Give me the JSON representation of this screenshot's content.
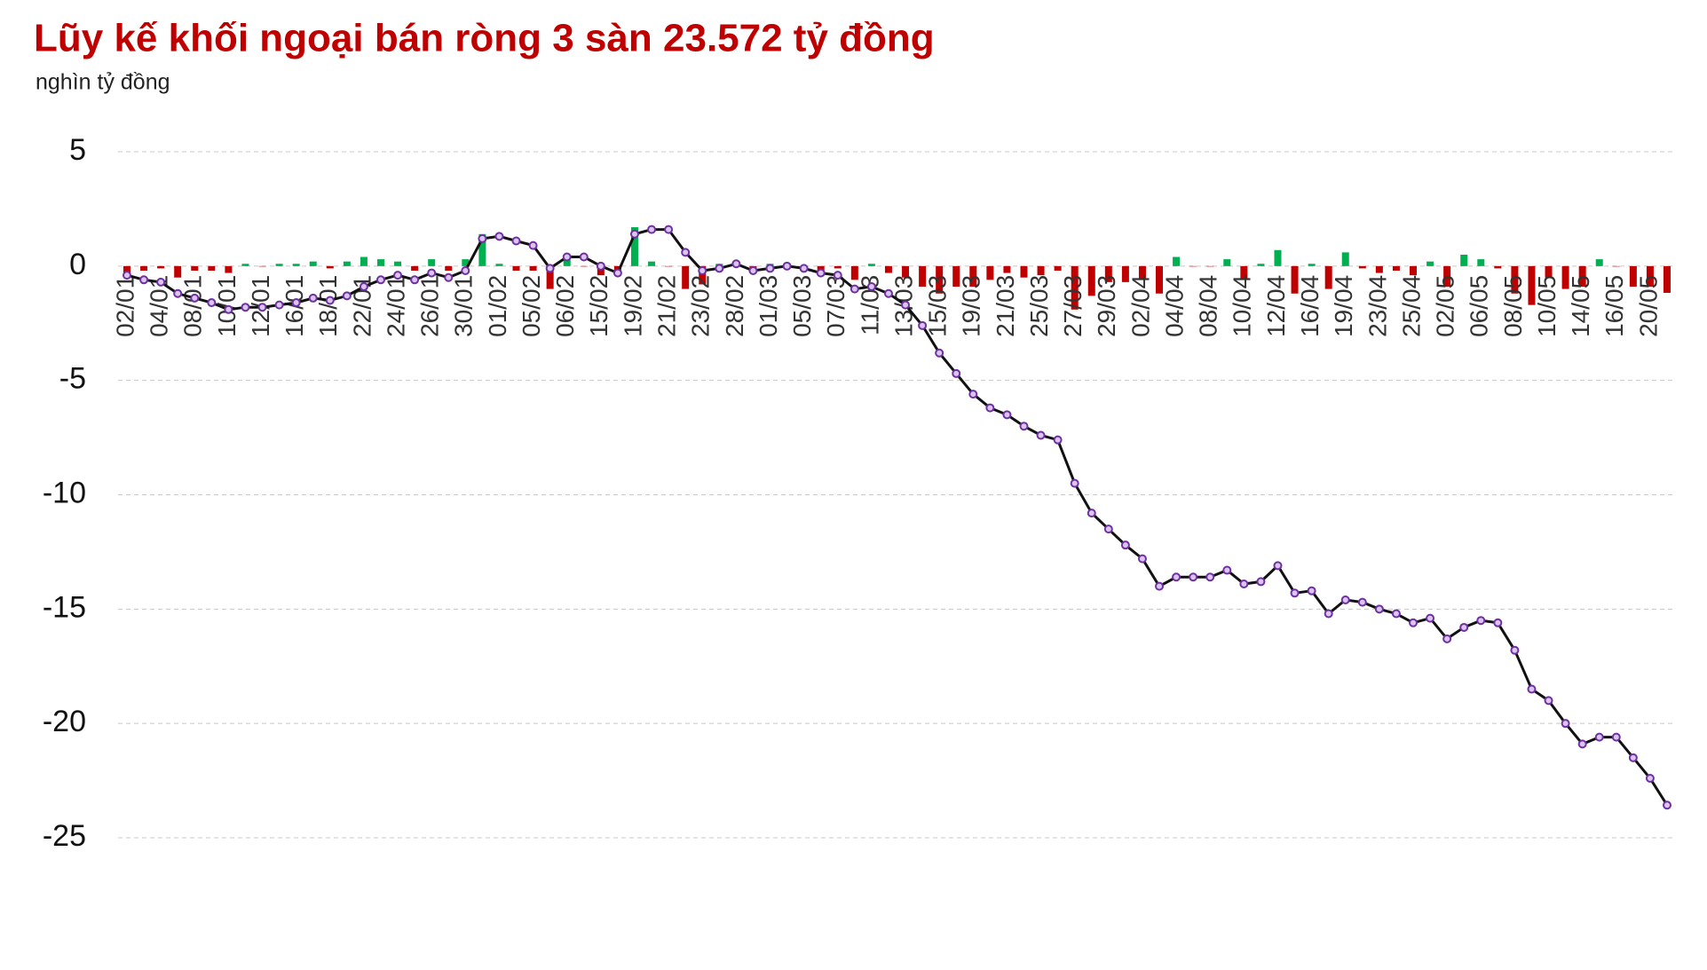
{
  "chart_data": {
    "type": "combo",
    "title": "Lũy kế khối ngoại bán ròng 3 sàn 23.572 tỷ đồng",
    "subtitle": "nghìn tỷ đồng",
    "categories": [
      "02/01",
      null,
      "04/01",
      null,
      "08/01",
      null,
      "10/01",
      null,
      "12/01",
      null,
      "16/01",
      null,
      "18/01",
      null,
      "22/01",
      null,
      "24/01",
      null,
      "26/01",
      null,
      "30/01",
      null,
      "01/02",
      null,
      "05/02",
      null,
      "06/02",
      null,
      "15/02",
      null,
      "19/02",
      null,
      "21/02",
      null,
      "23/02",
      null,
      "28/02",
      null,
      "01/03",
      null,
      "05/03",
      null,
      "07/03",
      null,
      "11/03",
      null,
      "13/03",
      null,
      "15/03",
      null,
      "19/03",
      null,
      "21/03",
      null,
      "25/03",
      null,
      "27/03",
      null,
      "29/03",
      null,
      "02/04",
      null,
      "04/04",
      null,
      "08/04",
      null,
      "10/04",
      null,
      "12/04",
      null,
      "16/04",
      null,
      "19/04",
      null,
      "23/04",
      null,
      "25/04",
      null,
      "02/05",
      null,
      "06/05",
      null,
      "08/05",
      null,
      "10/05",
      null,
      "14/05",
      null,
      "16/05",
      null,
      "20/05",
      null
    ],
    "series": [
      {
        "type": "bar",
        "color": "#c00000",
        "positive_color": "#00b050",
        "values": [
          -0.4,
          -0.2,
          -0.1,
          -0.5,
          -0.2,
          -0.2,
          -0.3,
          0.1,
          0.0,
          0.1,
          0.1,
          0.2,
          -0.1,
          0.2,
          0.4,
          0.3,
          0.2,
          -0.2,
          0.3,
          -0.2,
          0.3,
          1.4,
          0.1,
          -0.2,
          -0.2,
          -1.0,
          0.5,
          0.0,
          -0.4,
          -0.3,
          1.7,
          0.2,
          0.0,
          -1.0,
          -0.8,
          0.1,
          0.2,
          -0.3,
          0.1,
          0.1,
          -0.1,
          -0.2,
          -0.1,
          -0.6,
          0.1,
          -0.3,
          -0.5,
          -0.9,
          -1.2,
          -0.9,
          -0.9,
          -0.6,
          -0.3,
          -0.5,
          -0.4,
          -0.2,
          -1.9,
          -1.3,
          -0.7,
          -0.7,
          -0.6,
          -1.2,
          0.4,
          0.0,
          0.0,
          0.3,
          -0.6,
          0.1,
          0.7,
          -1.2,
          0.1,
          -1.0,
          0.6,
          -0.1,
          -0.3,
          -0.2,
          -0.4,
          0.2,
          -0.9,
          0.5,
          0.3,
          -0.1,
          -1.2,
          -1.7,
          -0.5,
          -1.0,
          -0.9,
          0.3,
          0.0,
          -0.9,
          -0.9,
          -1.17
        ]
      },
      {
        "type": "line",
        "color": "#111111",
        "marker_color": "#7030a0",
        "values": [
          -0.4,
          -0.6,
          -0.7,
          -1.2,
          -1.4,
          -1.6,
          -1.9,
          -1.8,
          -1.8,
          -1.7,
          -1.6,
          -1.4,
          -1.5,
          -1.3,
          -0.9,
          -0.6,
          -0.4,
          -0.6,
          -0.3,
          -0.5,
          -0.2,
          1.2,
          1.3,
          1.1,
          0.9,
          -0.1,
          0.4,
          0.4,
          0.0,
          -0.3,
          1.4,
          1.6,
          1.6,
          0.6,
          -0.2,
          -0.1,
          0.1,
          -0.2,
          -0.1,
          0.0,
          -0.1,
          -0.3,
          -0.4,
          -1.0,
          -0.9,
          -1.2,
          -1.7,
          -2.6,
          -3.8,
          -4.7,
          -5.6,
          -6.2,
          -6.5,
          -7.0,
          -7.4,
          -7.6,
          -9.5,
          -10.8,
          -11.5,
          -12.2,
          -12.8,
          -14.0,
          -13.6,
          -13.6,
          -13.6,
          -13.3,
          -13.9,
          -13.8,
          -13.1,
          -14.3,
          -14.2,
          -15.2,
          -14.6,
          -14.7,
          -15.0,
          -15.2,
          -15.6,
          -15.4,
          -16.3,
          -15.8,
          -15.5,
          -15.6,
          -16.8,
          -18.5,
          -19.0,
          -20.0,
          -20.9,
          -20.6,
          -20.6,
          -21.5,
          -22.4,
          -23.572
        ]
      }
    ],
    "ylim": [
      5,
      -25
    ],
    "yticks": [
      5,
      0,
      -5,
      -10,
      -15,
      -20,
      -25
    ],
    "grid": true
  }
}
